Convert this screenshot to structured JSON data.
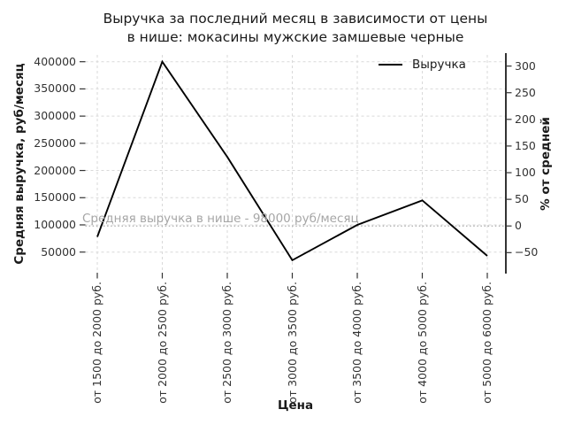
{
  "title": {
    "line1": "Выручка за последний месяц в зависимости от цены",
    "line2": "в нише: мокасины мужские замшевые черные"
  },
  "chart_data": {
    "type": "line",
    "title": "Выручка за последний месяц в зависимости от цены в нише: мокасины мужские замшевые черные",
    "categories": [
      "от 1500 до 2000 руб.",
      "от 2000 до 2500 руб.",
      "от 2500 до 3000 руб.",
      "от 3000 до 3500 руб.",
      "от 3500 до 4000 руб.",
      "от 4000 до 5000 руб.",
      "от 5000 до 6000 руб."
    ],
    "series": [
      {
        "name": "Выручка",
        "color": "#000000",
        "values": [
          78000,
          400000,
          225000,
          35000,
          100000,
          145000,
          43000
        ]
      }
    ],
    "xlabel": "Цена",
    "ylabel_left": "Средняя выручка, руб/месяц",
    "ylabel_right": "% от средней",
    "y_left_ticks": [
      50000,
      100000,
      150000,
      200000,
      250000,
      300000,
      350000,
      400000
    ],
    "y_right_ticks": [
      300,
      250,
      200,
      150,
      100,
      50,
      0,
      -50
    ],
    "y_left_range": [
      16000,
      419000
    ],
    "average": {
      "value": 98000,
      "label": "Средняя выручка в нише - 98000 руб/месяц"
    },
    "legend": {
      "label": "Выручка",
      "position": "upper-right"
    },
    "grid": true
  },
  "colors": {
    "line": "#000000",
    "grid": "#d9d9d9",
    "avg_line": "#aaaaaa",
    "annotation": "#a6a6a6",
    "tick_text": "#333333",
    "tick_mark": "#333333",
    "spine": "#000000",
    "text": "#1a1a1a"
  }
}
